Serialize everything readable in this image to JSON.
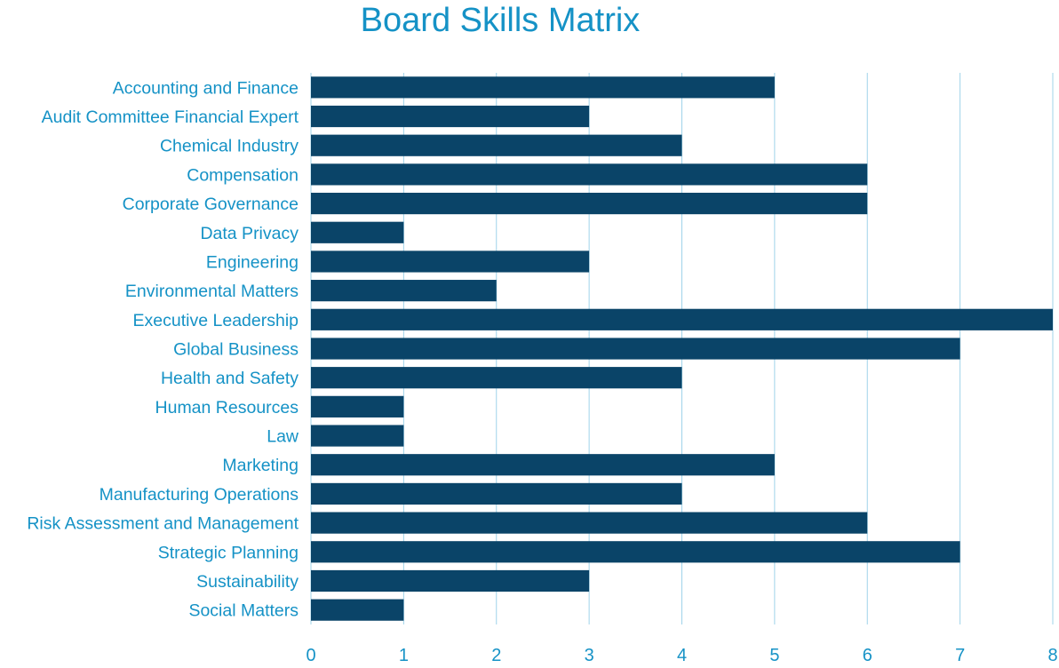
{
  "chart_data": {
    "type": "bar",
    "orientation": "horizontal",
    "title": "Board Skills Matrix",
    "xlabel": "",
    "ylabel": "",
    "xlim": [
      0,
      8
    ],
    "x_ticks": [
      "0",
      "1",
      "2",
      "3",
      "4",
      "5",
      "6",
      "7",
      "8"
    ],
    "grid": "vertical",
    "legend": "none",
    "categories": [
      "Accounting and Finance",
      "Audit Committee Financial Expert",
      "Chemical Industry",
      "Compensation",
      "Corporate Governance",
      "Data Privacy",
      "Engineering",
      "Environmental Matters",
      "Executive Leadership",
      "Global Business",
      "Health and Safety",
      "Human Resources",
      "Law",
      "Marketing",
      "Manufacturing Operations",
      "Risk Assessment and Management",
      "Strategic Planning",
      "Sustainability",
      "Social Matters"
    ],
    "values": [
      5,
      3,
      4,
      6,
      6,
      1,
      3,
      2,
      8,
      7,
      4,
      1,
      1,
      5,
      4,
      6,
      7,
      3,
      1
    ],
    "colors": {
      "bar": "#0a4468",
      "label": "#1592c6",
      "grid": "#9fd3ea",
      "title": "#1592c6"
    }
  }
}
